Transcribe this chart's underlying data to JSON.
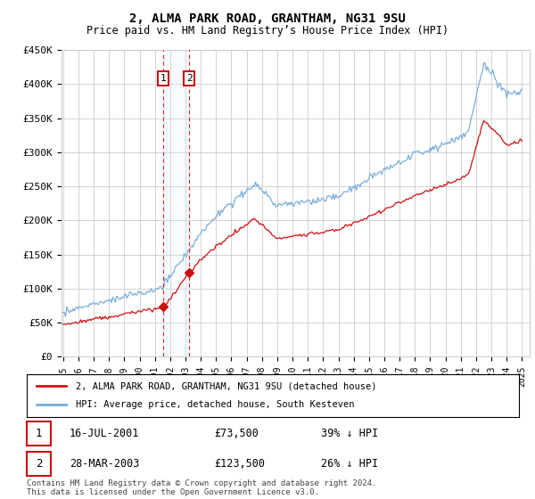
{
  "title": "2, ALMA PARK ROAD, GRANTHAM, NG31 9SU",
  "subtitle": "Price paid vs. HM Land Registry’s House Price Index (HPI)",
  "ylim": [
    0,
    450000
  ],
  "yticks": [
    0,
    50000,
    100000,
    150000,
    200000,
    250000,
    300000,
    350000,
    400000,
    450000
  ],
  "x_start_year": 1995,
  "x_end_year": 2025,
  "hpi_color": "#7aaddb",
  "price_color": "#cc1111",
  "sale1_year_dec": 2001.538,
  "sale1_price": 73500,
  "sale1_hpi_pct": "39%",
  "sale1_label": "1",
  "sale1_date": "16-JUL-2001",
  "sale2_year_dec": 2003.236,
  "sale2_price": 123500,
  "sale2_label": "2",
  "sale2_hpi_pct": "26%",
  "sale2_date": "28-MAR-2003",
  "legend_property": "2, ALMA PARK ROAD, GRANTHAM, NG31 9SU (detached house)",
  "legend_hpi": "HPI: Average price, detached house, South Kesteven",
  "footnote": "Contains HM Land Registry data © Crown copyright and database right 2024.\nThis data is licensed under the Open Government Licence v3.0.",
  "background_color": "#ffffff",
  "grid_color": "#cccccc",
  "shade_color": "#ddeeff",
  "label_box_color": "#cc1111"
}
